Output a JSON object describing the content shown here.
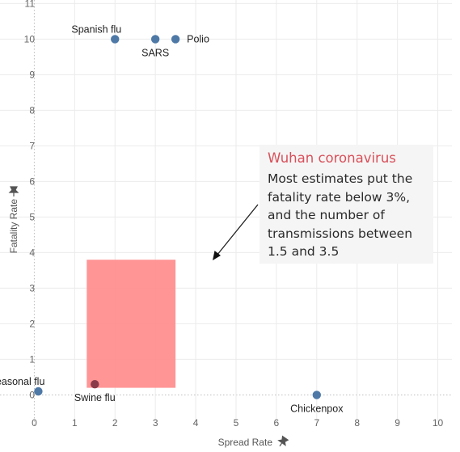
{
  "chart_data": {
    "type": "scatter",
    "xlabel": "Spread Rate",
    "ylabel": "Fatality Rate",
    "xlim": [
      -0.85,
      10.35
    ],
    "ylim": [
      -0.65,
      11.1
    ],
    "xticks": [
      0,
      1,
      2,
      3,
      4,
      5,
      6,
      7,
      8,
      9,
      10
    ],
    "yticks": [
      0,
      1,
      2,
      3,
      4,
      5,
      6,
      7,
      8,
      9,
      10,
      11
    ],
    "grid": true,
    "colors": {
      "point": "#4e79a7",
      "highlight_point": "#8a3b4a",
      "region": "#ff8f8f",
      "annotation_title": "#d8505a"
    },
    "points": [
      {
        "name": "Spanish flu",
        "x": 2,
        "y": 10,
        "label_pos": "top-left"
      },
      {
        "name": "SARS",
        "x": 3,
        "y": 10,
        "label_pos": "bottom"
      },
      {
        "name": "Polio",
        "x": 3.5,
        "y": 10,
        "label_pos": "right"
      },
      {
        "name": "Seasonal flu",
        "x": 0.1,
        "y": 0.1,
        "label_pos": "top-left"
      },
      {
        "name": "Swine flu",
        "x": 1.5,
        "y": 0.3,
        "label_pos": "bottom",
        "highlight": true
      },
      {
        "name": "Chickenpox",
        "x": 7,
        "y": 0,
        "label_pos": "bottom"
      }
    ],
    "region": {
      "x": [
        1.3,
        3.5
      ],
      "y": [
        0.2,
        3.8
      ]
    },
    "annotation": {
      "title": "Wuhan coronavirus",
      "text": "Most estimates put the fatality rate below 3%, and the number of transmissions between 1.5 and 3.5"
    }
  }
}
